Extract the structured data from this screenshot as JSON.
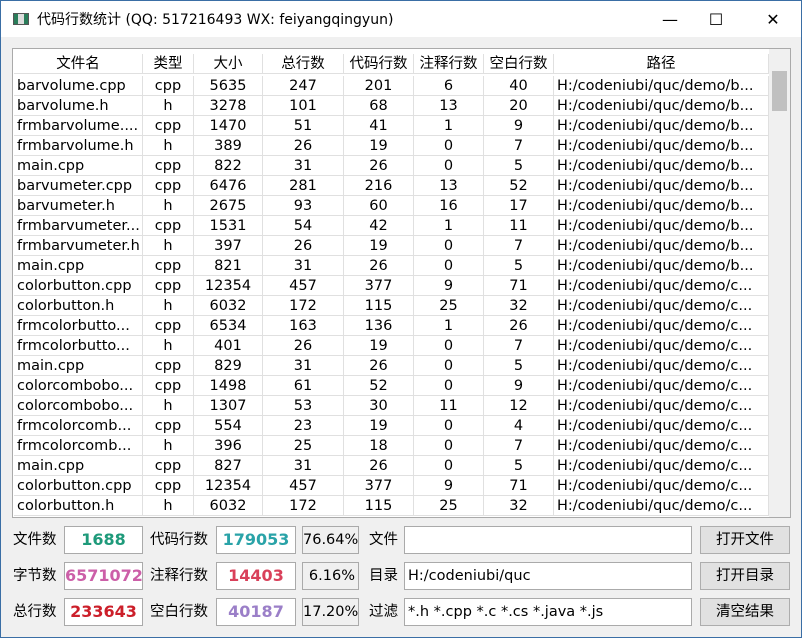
{
  "window": {
    "title": "代码行数统计 (QQ: 517216493 WX: feiyangqingyun)",
    "minimize": "—",
    "maximize": "☐",
    "close": "✕"
  },
  "table": {
    "headers": [
      "文件名",
      "类型",
      "大小",
      "总行数",
      "代码行数",
      "注释行数",
      "空白行数",
      "路径"
    ],
    "rows": [
      [
        "barvolume.cpp",
        "cpp",
        "5635",
        "247",
        "201",
        "6",
        "40",
        "H:/codeniubi/quc/demo/b..."
      ],
      [
        "barvolume.h",
        "h",
        "3278",
        "101",
        "68",
        "13",
        "20",
        "H:/codeniubi/quc/demo/b..."
      ],
      [
        "frmbarvolume....",
        "cpp",
        "1470",
        "51",
        "41",
        "1",
        "9",
        "H:/codeniubi/quc/demo/b..."
      ],
      [
        "frmbarvolume.h",
        "h",
        "389",
        "26",
        "19",
        "0",
        "7",
        "H:/codeniubi/quc/demo/b..."
      ],
      [
        "main.cpp",
        "cpp",
        "822",
        "31",
        "26",
        "0",
        "5",
        "H:/codeniubi/quc/demo/b..."
      ],
      [
        "barvumeter.cpp",
        "cpp",
        "6476",
        "281",
        "216",
        "13",
        "52",
        "H:/codeniubi/quc/demo/b..."
      ],
      [
        "barvumeter.h",
        "h",
        "2675",
        "93",
        "60",
        "16",
        "17",
        "H:/codeniubi/quc/demo/b..."
      ],
      [
        "frmbarvumeter...",
        "cpp",
        "1531",
        "54",
        "42",
        "1",
        "11",
        "H:/codeniubi/quc/demo/b..."
      ],
      [
        "frmbarvumeter.h",
        "h",
        "397",
        "26",
        "19",
        "0",
        "7",
        "H:/codeniubi/quc/demo/b..."
      ],
      [
        "main.cpp",
        "cpp",
        "821",
        "31",
        "26",
        "0",
        "5",
        "H:/codeniubi/quc/demo/b..."
      ],
      [
        "colorbutton.cpp",
        "cpp",
        "12354",
        "457",
        "377",
        "9",
        "71",
        "H:/codeniubi/quc/demo/c..."
      ],
      [
        "colorbutton.h",
        "h",
        "6032",
        "172",
        "115",
        "25",
        "32",
        "H:/codeniubi/quc/demo/c..."
      ],
      [
        "frmcolorbutto...",
        "cpp",
        "6534",
        "163",
        "136",
        "1",
        "26",
        "H:/codeniubi/quc/demo/c..."
      ],
      [
        "frmcolorbutto...",
        "h",
        "401",
        "26",
        "19",
        "0",
        "7",
        "H:/codeniubi/quc/demo/c..."
      ],
      [
        "main.cpp",
        "cpp",
        "829",
        "31",
        "26",
        "0",
        "5",
        "H:/codeniubi/quc/demo/c..."
      ],
      [
        "colorcombobo...",
        "cpp",
        "1498",
        "61",
        "52",
        "0",
        "9",
        "H:/codeniubi/quc/demo/c..."
      ],
      [
        "colorcombobo...",
        "h",
        "1307",
        "53",
        "30",
        "11",
        "12",
        "H:/codeniubi/quc/demo/c..."
      ],
      [
        "frmcolorcomb...",
        "cpp",
        "554",
        "23",
        "19",
        "0",
        "4",
        "H:/codeniubi/quc/demo/c..."
      ],
      [
        "frmcolorcomb...",
        "h",
        "396",
        "25",
        "18",
        "0",
        "7",
        "H:/codeniubi/quc/demo/c..."
      ],
      [
        "main.cpp",
        "cpp",
        "827",
        "31",
        "26",
        "0",
        "5",
        "H:/codeniubi/quc/demo/c..."
      ],
      [
        "colorbutton.cpp",
        "cpp",
        "12354",
        "457",
        "377",
        "9",
        "71",
        "H:/codeniubi/quc/demo/c..."
      ],
      [
        "colorbutton.h",
        "h",
        "6032",
        "172",
        "115",
        "25",
        "32",
        "H:/codeniubi/quc/demo/c..."
      ]
    ]
  },
  "stats": {
    "file_count_label": "文件数",
    "file_count": "1688",
    "file_count_color": "#1e9a7a",
    "code_lines_label": "代码行数",
    "code_lines": "179053",
    "code_lines_color": "#2aa3a8",
    "code_pct": "76.64%",
    "bytes_label": "字节数",
    "bytes": "6571072",
    "bytes_color": "#cc5fa8",
    "comment_lines_label": "注释行数",
    "comment_lines": "14403",
    "comment_lines_color": "#d9405a",
    "comment_pct": "6.16%",
    "total_lines_label": "总行数",
    "total_lines": "233643",
    "total_lines_color": "#cc1f2a",
    "blank_lines_label": "空白行数",
    "blank_lines": "40187",
    "blank_lines_color": "#9b7fc8",
    "blank_pct": "17.20%"
  },
  "controls": {
    "file_label": "文件",
    "file_value": "",
    "open_file": "打开文件",
    "dir_label": "目录",
    "dir_value": "H:/codeniubi/quc",
    "open_dir": "打开目录",
    "filter_label": "过滤",
    "filter_value": "*.h *.cpp *.c *.cs *.java *.js",
    "clear": "清空结果"
  }
}
